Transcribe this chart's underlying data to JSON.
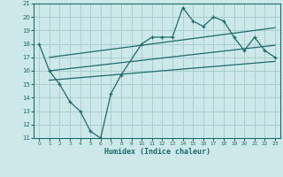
{
  "xlabel": "Humidex (Indice chaleur)",
  "bg_color": "#cce8e8",
  "grid_color": "#aacece",
  "line_color": "#1e6b6b",
  "xlim": [
    -0.5,
    23.5
  ],
  "ylim": [
    11,
    21
  ],
  "xticks": [
    0,
    1,
    2,
    3,
    4,
    5,
    6,
    7,
    8,
    9,
    10,
    11,
    12,
    13,
    14,
    15,
    16,
    17,
    18,
    19,
    20,
    21,
    22,
    23
  ],
  "yticks": [
    11,
    12,
    13,
    14,
    15,
    16,
    17,
    18,
    19,
    20,
    21
  ],
  "main_x": [
    0,
    1,
    2,
    3,
    4,
    5,
    6,
    7,
    8,
    10,
    11,
    12,
    13,
    14,
    15,
    16,
    17,
    18,
    19,
    20,
    21,
    22,
    23
  ],
  "main_y": [
    18,
    16,
    15,
    13.7,
    13.0,
    11.5,
    11.0,
    14.3,
    15.7,
    18.0,
    18.5,
    18.5,
    18.5,
    20.7,
    19.7,
    19.3,
    20.0,
    19.7,
    18.5,
    17.5,
    18.5,
    17.5,
    17.0
  ],
  "upper_line_x": [
    1,
    23
  ],
  "upper_line_y": [
    17.0,
    19.2
  ],
  "lower_line_x": [
    1,
    23
  ],
  "lower_line_y": [
    15.3,
    16.7
  ],
  "mid_line_x": [
    1,
    23
  ],
  "mid_line_y": [
    16.0,
    17.9
  ]
}
